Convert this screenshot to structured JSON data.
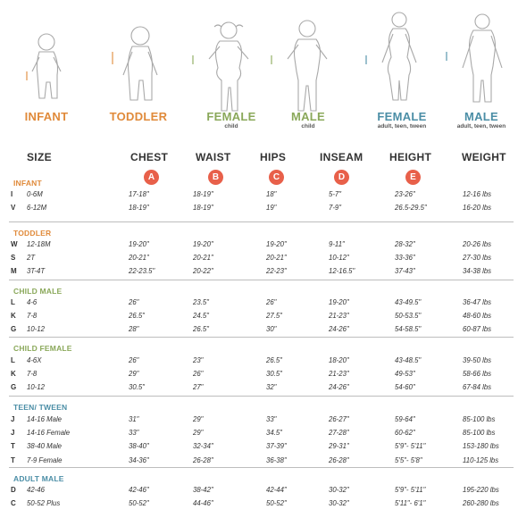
{
  "colors": {
    "orange": "#e08a3a",
    "green": "#8aa85a",
    "teal": "#4b8ea6",
    "badge": "#e8604a"
  },
  "figures": [
    {
      "label": "INFANT",
      "sub": "",
      "color": "#e08a3a"
    },
    {
      "label": "TODDLER",
      "sub": "",
      "color": "#e08a3a"
    },
    {
      "label": "FEMALE",
      "sub": "child",
      "color": "#8aa85a"
    },
    {
      "label": "MALE",
      "sub": "child",
      "color": "#8aa85a"
    },
    {
      "label": "FEMALE",
      "sub": "adult, teen, tween",
      "color": "#4b8ea6"
    },
    {
      "label": "MALE",
      "sub": "adult, teen, tween",
      "color": "#4b8ea6"
    }
  ],
  "headers": {
    "size": "SIZE",
    "chest": "CHEST",
    "waist": "WAIST",
    "hips": "HIPS",
    "inseam": "INSEAM",
    "height": "HEIGHT",
    "weight": "WEIGHT"
  },
  "badges": [
    "A",
    "B",
    "C",
    "D",
    "E"
  ],
  "sections": [
    {
      "title": "INFANT",
      "color": "#e08a3a",
      "rows": [
        {
          "letter": "I",
          "size": "0-6M",
          "chest": "17-18\"",
          "waist": "18-19\"",
          "hips": "18\"",
          "inseam": "5-7\"",
          "height": "23-26\"",
          "weight": "12-16 lbs"
        },
        {
          "letter": "V",
          "size": "6-12M",
          "chest": "18-19\"",
          "waist": "18-19\"",
          "hips": "19\"",
          "inseam": "7-9\"",
          "height": "26.5-29.5\"",
          "weight": "16-20 lbs"
        }
      ]
    },
    {
      "title": "TODDLER",
      "color": "#e08a3a",
      "rows": [
        {
          "letter": "W",
          "size": "12-18M",
          "chest": "19-20\"",
          "waist": "19-20\"",
          "hips": "19-20\"",
          "inseam": "9-11\"",
          "height": "28-32\"",
          "weight": "20-26 lbs"
        },
        {
          "letter": "S",
          "size": "2T",
          "chest": "20-21\"",
          "waist": "20-21\"",
          "hips": "20-21\"",
          "inseam": "10-12\"",
          "height": "33-36\"",
          "weight": "27-30 lbs"
        },
        {
          "letter": "M",
          "size": "3T-4T",
          "chest": "22-23.5\"",
          "waist": "20-22\"",
          "hips": "22-23\"",
          "inseam": "12-16.5\"",
          "height": "37-43\"",
          "weight": "34-38 lbs"
        }
      ]
    },
    {
      "title": "CHILD MALE",
      "color": "#8aa85a",
      "rows": [
        {
          "letter": "L",
          "size": "4-6",
          "chest": "26\"",
          "waist": "23.5\"",
          "hips": "26\"",
          "inseam": "19-20\"",
          "height": "43-49.5\"",
          "weight": "36-47 lbs"
        },
        {
          "letter": "K",
          "size": "7-8",
          "chest": "26.5\"",
          "waist": "24.5\"",
          "hips": "27.5\"",
          "inseam": "21-23\"",
          "height": "50-53.5\"",
          "weight": "48-60 lbs"
        },
        {
          "letter": "G",
          "size": "10-12",
          "chest": "28\"",
          "waist": "26.5\"",
          "hips": "30\"",
          "inseam": "24-26\"",
          "height": "54-58.5\"",
          "weight": "60-87 lbs"
        }
      ]
    },
    {
      "title": "CHILD FEMALE",
      "color": "#8aa85a",
      "rows": [
        {
          "letter": "L",
          "size": "4-6X",
          "chest": "26\"",
          "waist": "23\"",
          "hips": "26.5\"",
          "inseam": "18-20\"",
          "height": "43-48.5\"",
          "weight": "39-50 lbs"
        },
        {
          "letter": "K",
          "size": "7-8",
          "chest": "29\"",
          "waist": "26\"",
          "hips": "30.5\"",
          "inseam": "21-23\"",
          "height": "49-53\"",
          "weight": "58-66 lbs"
        },
        {
          "letter": "G",
          "size": "10-12",
          "chest": "30.5\"",
          "waist": "27\"",
          "hips": "32\"",
          "inseam": "24-26\"",
          "height": "54-60\"",
          "weight": "67-84 lbs"
        }
      ]
    },
    {
      "title": "TEEN/ TWEEN",
      "color": "#4b8ea6",
      "rows": [
        {
          "letter": "J",
          "size": "14-16 Male",
          "chest": "31\"",
          "waist": "29\"",
          "hips": "33\"",
          "inseam": "26-27\"",
          "height": "59-64\"",
          "weight": "85-100 lbs"
        },
        {
          "letter": "J",
          "size": "14-16 Female",
          "chest": "33\"",
          "waist": "29\"",
          "hips": "34.5\"",
          "inseam": "27-28\"",
          "height": "60-62\"",
          "weight": "85-100 lbs"
        },
        {
          "letter": "T",
          "size": "38-40 Male",
          "chest": "38-40\"",
          "waist": "32-34\"",
          "hips": "37-39\"",
          "inseam": "29-31\"",
          "height": "5'9\"- 5'11\"",
          "weight": "153-180 lbs"
        },
        {
          "letter": "T",
          "size": "7-9 Female",
          "chest": "34-36\"",
          "waist": "26-28\"",
          "hips": "36-38\"",
          "inseam": "26-28\"",
          "height": "5'5\"- 5'8\"",
          "weight": "110-125 lbs"
        }
      ]
    },
    {
      "title": "ADULT MALE",
      "color": "#4b8ea6",
      "rows": [
        {
          "letter": "D",
          "size": "42-46",
          "chest": "42-46\"",
          "waist": "38-42\"",
          "hips": "42-44\"",
          "inseam": "30-32\"",
          "height": "5'9\"- 5'11\"",
          "weight": "195-220 lbs"
        },
        {
          "letter": "C",
          "size": "50-52 Plus",
          "chest": "50-52\"",
          "waist": "44-46\"",
          "hips": "50-52\"",
          "inseam": "30-32\"",
          "height": "5'11\"- 6'1\"",
          "weight": "260-280 lbs"
        }
      ]
    }
  ]
}
